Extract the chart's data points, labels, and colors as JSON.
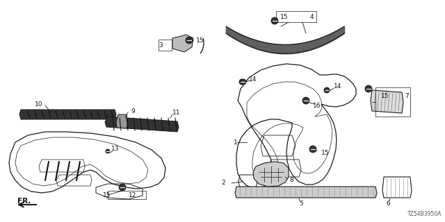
{
  "diagram_code": "TZ54B3950A",
  "background_color": "#ffffff",
  "line_color": "#1a1a1a",
  "text_color": "#111111",
  "label_fontsize": 6.5,
  "gray_fill": "#555555",
  "dark_fill": "#222222",
  "light_gray": "#aaaaaa"
}
